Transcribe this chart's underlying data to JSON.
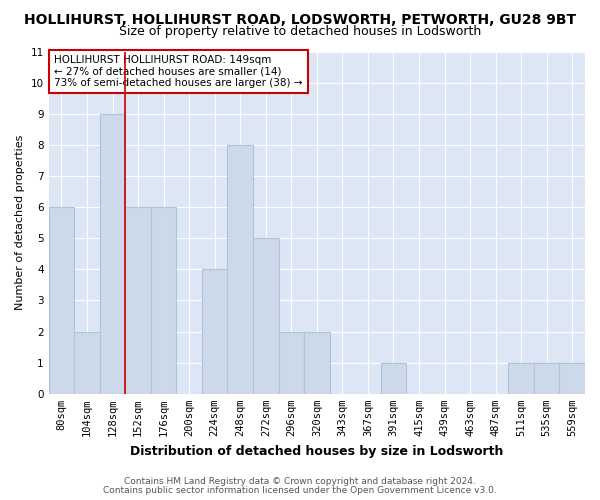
{
  "title": "HOLLIHURST, HOLLIHURST ROAD, LODSWORTH, PETWORTH, GU28 9BT",
  "subtitle": "Size of property relative to detached houses in Lodsworth",
  "xlabel": "Distribution of detached houses by size in Lodsworth",
  "ylabel": "Number of detached properties",
  "bar_color": "#ccd9ea",
  "bar_edge_color": "#aec4d8",
  "annotation_line_color": "#cc0000",
  "annotation_box_color": "#cc0000",
  "categories": [
    "80sqm",
    "104sqm",
    "128sqm",
    "152sqm",
    "176sqm",
    "200sqm",
    "224sqm",
    "248sqm",
    "272sqm",
    "296sqm",
    "320sqm",
    "343sqm",
    "367sqm",
    "391sqm",
    "415sqm",
    "439sqm",
    "463sqm",
    "487sqm",
    "511sqm",
    "535sqm",
    "559sqm"
  ],
  "values": [
    6,
    2,
    9,
    6,
    6,
    0,
    4,
    8,
    5,
    2,
    2,
    0,
    0,
    1,
    0,
    0,
    0,
    0,
    1,
    1,
    1
  ],
  "ylim": [
    0,
    11
  ],
  "yticks": [
    0,
    1,
    2,
    3,
    4,
    5,
    6,
    7,
    8,
    9,
    10,
    11
  ],
  "property_line_index": 3,
  "annotation_text": "HOLLIHURST HOLLIHURST ROAD: 149sqm\n← 27% of detached houses are smaller (14)\n73% of semi-detached houses are larger (38) →",
  "footer1": "Contains HM Land Registry data © Crown copyright and database right 2024.",
  "footer2": "Contains public sector information licensed under the Open Government Licence v3.0.",
  "fig_bg_color": "#ffffff",
  "plot_bg_color": "#dce6f5",
  "grid_color": "#ffffff",
  "title_fontsize": 10,
  "subtitle_fontsize": 9,
  "xlabel_fontsize": 9,
  "ylabel_fontsize": 8,
  "tick_fontsize": 7.5,
  "footer_fontsize": 6.5
}
